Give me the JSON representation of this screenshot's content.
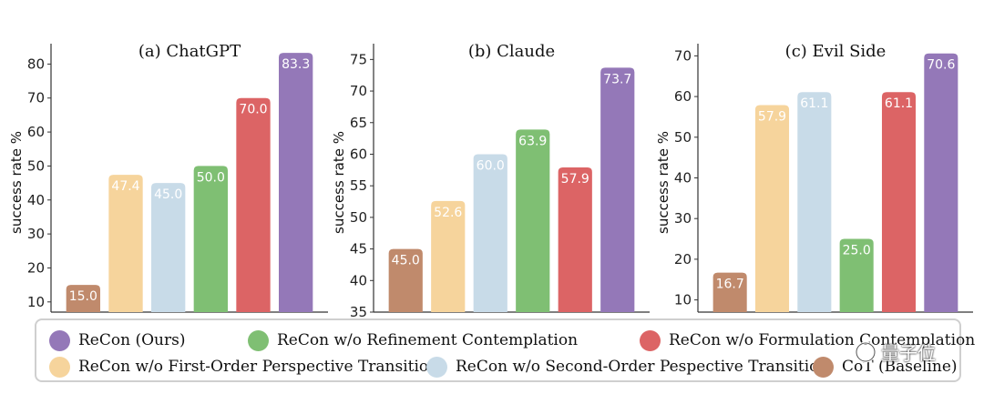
{
  "chart_data": [
    {
      "type": "bar",
      "title": "(a) ChatGPT",
      "ylabel": "success rate %",
      "xlabel": "",
      "ylim": [
        7,
        86
      ],
      "yticks": [
        10,
        20,
        30,
        40,
        50,
        60,
        70,
        80
      ],
      "categories": [
        "CoT (Baseline)",
        "ReCon w/o First-Order Perspective Transition",
        "ReCon w/o Second-Order Pespective Transition",
        "ReCon w/o Refinement Contemplation",
        "ReCon w/o Formulation Contemplation",
        "ReCon (Ours)"
      ],
      "values": [
        15.0,
        47.4,
        45.0,
        50.0,
        70.0,
        83.3
      ],
      "labels": [
        "15.0",
        "47.4",
        "45.0",
        "50.0",
        "70.0",
        "83.3"
      ]
    },
    {
      "type": "bar",
      "title": "(b) Claude",
      "ylabel": "success rate %",
      "xlabel": "",
      "ylim": [
        35,
        77.5
      ],
      "yticks": [
        35,
        40,
        45,
        50,
        55,
        60,
        65,
        70,
        75
      ],
      "categories": [
        "CoT (Baseline)",
        "ReCon w/o First-Order Perspective Transition",
        "ReCon w/o Second-Order Pespective Transition",
        "ReCon w/o Refinement Contemplation",
        "ReCon w/o Formulation Contemplation",
        "ReCon (Ours)"
      ],
      "values": [
        45.0,
        52.6,
        60.0,
        63.9,
        57.9,
        73.7
      ],
      "labels": [
        "45.0",
        "52.6",
        "60.0",
        "63.9",
        "57.9",
        "73.7"
      ]
    },
    {
      "type": "bar",
      "title": "(c) Evil Side",
      "ylabel": "success rate %",
      "xlabel": "",
      "ylim": [
        7,
        73
      ],
      "yticks": [
        10,
        20,
        30,
        40,
        50,
        60,
        70
      ],
      "categories": [
        "CoT (Baseline)",
        "ReCon w/o First-Order Perspective Transition",
        "ReCon w/o Second-Order Pespective Transition",
        "ReCon w/o Refinement Contemplation",
        "ReCon w/o Formulation Contemplation",
        "ReCon (Ours)"
      ],
      "values": [
        16.7,
        57.9,
        61.1,
        25.0,
        61.1,
        70.6
      ],
      "labels": [
        "16.7",
        "57.9",
        "61.1",
        "25.0",
        "61.1",
        "70.6"
      ]
    }
  ],
  "colors": [
    "#c08a6c",
    "#f6d49c",
    "#c8dbe8",
    "#7fbf73",
    "#dc6465",
    "#9478b8"
  ],
  "legend": [
    {
      "label": "ReCon (Ours)",
      "color": "#9478b8"
    },
    {
      "label": "ReCon w/o Refinement Contemplation",
      "color": "#7fbf73"
    },
    {
      "label": "ReCon w/o Formulation Contemplation",
      "color": "#dc6465"
    },
    {
      "label": "ReCon w/o First-Order Perspective Transition",
      "color": "#f6d49c"
    },
    {
      "label": "ReCon w/o Second-Order Pespective Transition",
      "color": "#c8dbe8"
    },
    {
      "label": "CoT (Baseline)",
      "color": "#c08a6c"
    }
  ],
  "watermark": {
    "text": "量子位"
  }
}
